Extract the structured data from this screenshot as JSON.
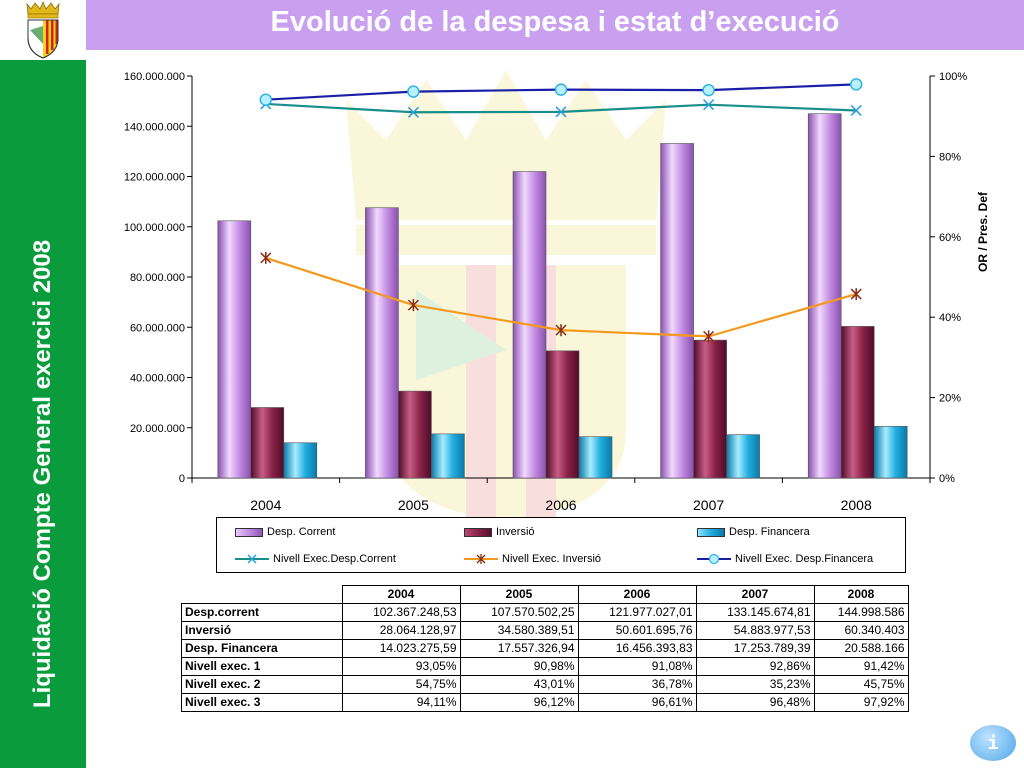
{
  "slide": {
    "title": "Evolució de la despesa i estat d’execució",
    "side_title": "Liquidació Compte General exercici 2008",
    "info_label": "i"
  },
  "colors": {
    "title_bar": "#c9a0ef",
    "side_bar": "#0a9c3c",
    "desp_corrent": "#c48ee3",
    "inversio": "#8a2348",
    "desp_financera": "#22aee0",
    "nivell_1": "#188f8a",
    "nivell_2": "#f39a1e",
    "nivell_3": "#1a1fa8"
  },
  "chart_data": {
    "type": "bar",
    "categories": [
      "2004",
      "2005",
      "2006",
      "2007",
      "2008"
    ],
    "series": [
      {
        "name": "Desp. Corrent",
        "axis": "left",
        "type": "bar",
        "values": [
          102367248.53,
          107570502.25,
          121977027.01,
          133145674.81,
          144998586
        ]
      },
      {
        "name": "Inversió",
        "axis": "left",
        "type": "bar",
        "values": [
          28064128.97,
          34580389.51,
          50601695.76,
          54883977.53,
          60340403
        ]
      },
      {
        "name": "Desp. Financera",
        "axis": "left",
        "type": "bar",
        "values": [
          14023275.59,
          17557326.94,
          16456393.83,
          17253789.39,
          20588166
        ]
      },
      {
        "name": "Nivell Exec.Desp.Corrent",
        "axis": "right",
        "type": "line",
        "marker": "x",
        "values": [
          93.05,
          90.98,
          91.08,
          92.86,
          91.42
        ]
      },
      {
        "name": "Nivell Exec. Inversió",
        "axis": "right",
        "type": "line",
        "marker": "star",
        "values": [
          54.75,
          43.01,
          36.78,
          35.23,
          45.75
        ]
      },
      {
        "name": "Nivell Exec. Desp.Financera",
        "axis": "right",
        "type": "line",
        "marker": "circle",
        "values": [
          94.11,
          96.12,
          96.61,
          96.48,
          97.92
        ]
      }
    ],
    "y_left": {
      "ylim": [
        0,
        160000000
      ],
      "ticks": [
        "0",
        "20.000.000",
        "40.000.000",
        "60.000.000",
        "80.000.000",
        "100.000.000",
        "120.000.000",
        "140.000.000",
        "160.000.000"
      ]
    },
    "y_right": {
      "label": "OR / Pres. Def",
      "ylim": [
        0,
        100
      ],
      "ticks": [
        "0%",
        "20%",
        "40%",
        "60%",
        "80%",
        "100%"
      ]
    },
    "legend_position": "bottom"
  },
  "table": {
    "headers": [
      "",
      "2004",
      "2005",
      "2006",
      "2007",
      "2008"
    ],
    "rows": [
      {
        "label": "Desp.corrent",
        "values": [
          "102.367.248,53",
          "107.570.502,25",
          "121.977.027,01",
          "133.145.674,81",
          "144.998.586"
        ]
      },
      {
        "label": "Inversió",
        "values": [
          "28.064.128,97",
          "34.580.389,51",
          "50.601.695,76",
          "54.883.977,53",
          "60.340.403"
        ]
      },
      {
        "label": "Desp. Financera",
        "values": [
          "14.023.275,59",
          "17.557.326,94",
          "16.456.393,83",
          "17.253.789,39",
          "20.588.166"
        ]
      },
      {
        "label": "Nivell exec. 1",
        "values": [
          "93,05%",
          "90,98%",
          "91,08%",
          "92,86%",
          "91,42%"
        ]
      },
      {
        "label": "Nivell exec. 2",
        "values": [
          "54,75%",
          "43,01%",
          "36,78%",
          "35,23%",
          "45,75%"
        ]
      },
      {
        "label": "Nivell exec. 3",
        "values": [
          "94,11%",
          "96,12%",
          "96,61%",
          "96,48%",
          "97,92%"
        ]
      }
    ]
  }
}
